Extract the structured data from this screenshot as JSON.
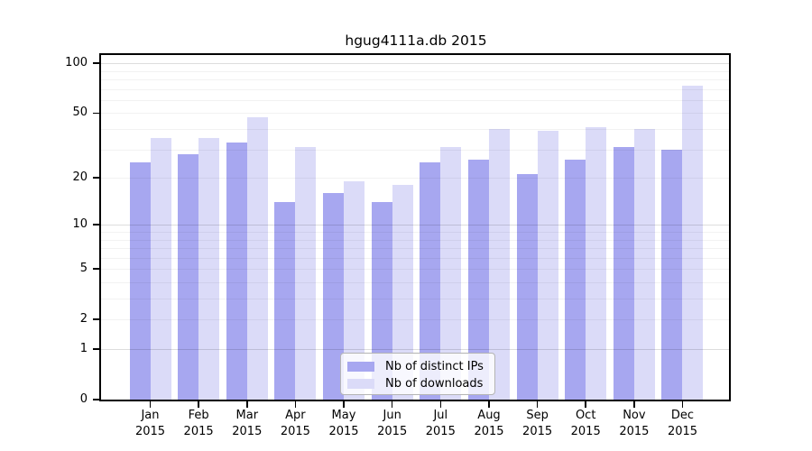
{
  "chart_data": {
    "type": "bar",
    "title": "hgug4111a.db 2015",
    "categories": [
      "Jan",
      "Feb",
      "Mar",
      "Apr",
      "May",
      "Jun",
      "Jul",
      "Aug",
      "Sep",
      "Oct",
      "Nov",
      "Dec"
    ],
    "category_year": "2015",
    "series": [
      {
        "name": "Nb of distinct IPs",
        "color": "#a7a7f0",
        "values": [
          25,
          28,
          33,
          14,
          16,
          14,
          25,
          26,
          21,
          26,
          31,
          30
        ]
      },
      {
        "name": "Nb of downloads",
        "color": "#dbdbf8",
        "values": [
          35,
          35,
          47,
          31,
          19,
          18,
          31,
          40,
          39,
          41,
          40,
          73
        ]
      }
    ],
    "xlabel": "",
    "ylabel": "",
    "y_scale": "log1p",
    "ylim": [
      0,
      112
    ],
    "y_ticks": [
      0,
      1,
      2,
      5,
      10,
      20,
      50,
      100
    ],
    "y_gridlines_major": [
      1,
      10,
      100
    ],
    "y_gridlines_minor": [
      2,
      3,
      4,
      5,
      6,
      7,
      8,
      9,
      20,
      30,
      40,
      50,
      60,
      70,
      80,
      90
    ],
    "grid": true,
    "legend_position": "lower center"
  }
}
